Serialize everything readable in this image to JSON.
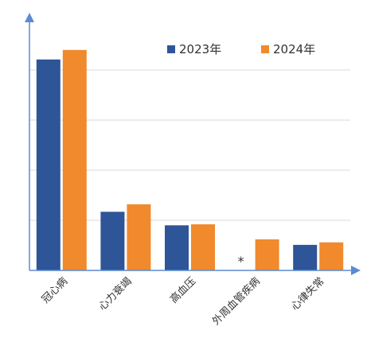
{
  "chart_data": {
    "type": "bar",
    "categories": [
      "冠心病",
      "心力衰竭",
      "高血压",
      "外周血管疾病",
      "心律失常"
    ],
    "series": [
      {
        "name": "2023年",
        "color": "#2e5597",
        "values": [
          4.21,
          1.17,
          0.9,
          null,
          0.51
        ]
      },
      {
        "name": "2024年",
        "color": "#f08a2c",
        "values": [
          4.4,
          1.32,
          0.92,
          0.62,
          0.56
        ]
      }
    ],
    "annotation": "*",
    "ylim": [
      0,
      5
    ],
    "yticks": [
      0,
      1,
      2,
      3,
      4
    ],
    "grid": true
  }
}
